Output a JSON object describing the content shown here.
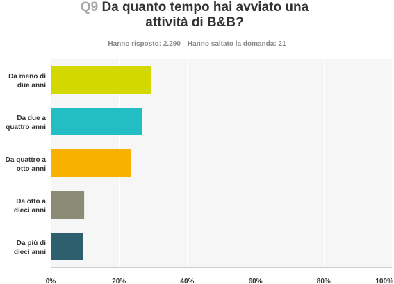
{
  "question": {
    "number": "Q9",
    "title": "Da quanto tempo hai avviato una attività di B&B?"
  },
  "responses": {
    "answered": "Hanno risposto: 2.290",
    "skipped": "Hanno saltato la domanda: 21"
  },
  "chart_data": {
    "type": "bar",
    "orientation": "horizontal",
    "categories": [
      [
        "Da meno di",
        "due anni"
      ],
      [
        "Da due a",
        "quattro anni"
      ],
      [
        "Da quattro a",
        "otto anni"
      ],
      [
        "Da otto a",
        "dieci anni"
      ],
      [
        "Da più di",
        "dieci anni"
      ]
    ],
    "values": [
      29.5,
      26.8,
      23.5,
      9.8,
      9.4
    ],
    "colors": [
      "#d3d800",
      "#22bec3",
      "#f8b100",
      "#8b8b78",
      "#2e5f6e"
    ],
    "xlim": [
      0,
      100
    ],
    "ticks": [
      "0%",
      "20%",
      "40%",
      "60%",
      "80%",
      "100%"
    ],
    "tick_values": [
      0,
      20,
      40,
      60,
      80,
      100
    ],
    "grid": true,
    "title": "",
    "xlabel": "",
    "ylabel": ""
  }
}
